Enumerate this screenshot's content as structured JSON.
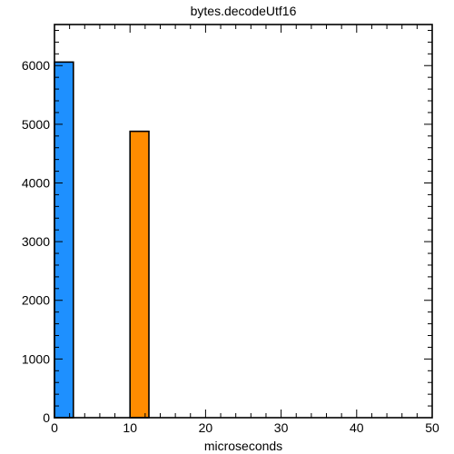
{
  "chart_data": {
    "type": "bar",
    "title": "bytes.decodeUtf16",
    "xlabel": "microseconds",
    "ylabel": "",
    "xlim": [
      0,
      50
    ],
    "ylim": [
      0,
      6700
    ],
    "xticks": [
      0,
      10,
      20,
      30,
      40,
      50
    ],
    "yticks": [
      0,
      1000,
      2000,
      3000,
      4000,
      5000,
      6000
    ],
    "grid": false,
    "bars": [
      {
        "x0": 0,
        "x1": 2.5,
        "value": 6060,
        "color": "#1e90ff"
      },
      {
        "x0": 10,
        "x1": 12.5,
        "value": 4880,
        "color": "#ff8c00"
      }
    ]
  }
}
